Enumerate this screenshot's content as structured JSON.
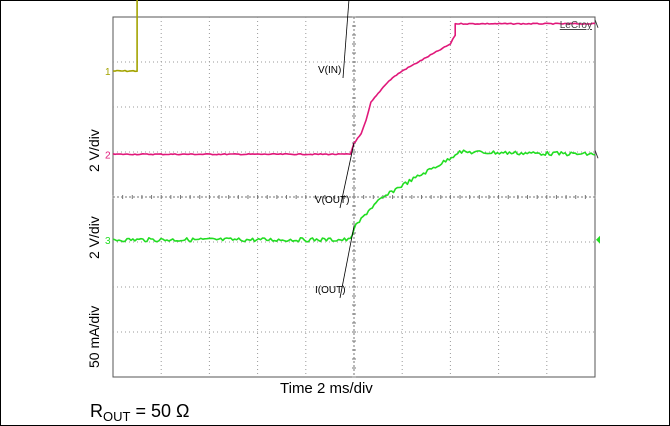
{
  "brand": "LeCroy",
  "labels": {
    "ylabel_top": "2 V/div",
    "ylabel_mid": "2 V/div",
    "ylabel_bot": "50 mA/div",
    "xlabel": "Time 2 ms/div",
    "rout_prefix": "R",
    "rout_sub": "OUT",
    "rout_suffix": " = 50 Ω"
  },
  "colors": {
    "vin": "#a3a300",
    "vout": "#e0187a",
    "iout": "#22dd22",
    "grid": "#9a9a9a",
    "border": "#555555"
  },
  "chart_data": {
    "type": "line",
    "x_unit": "ms",
    "x_range": [
      0,
      20
    ],
    "x_divisions": 10,
    "y_divisions": 8,
    "series": [
      {
        "name": "V(IN)",
        "marker": "1",
        "units": "div",
        "points": [
          [
            0,
            6.8
          ],
          [
            1.0,
            6.8
          ],
          [
            1.0,
            9.7
          ],
          [
            1.15,
            9.85
          ],
          [
            1.5,
            9.85
          ],
          [
            20,
            9.85
          ]
        ]
      },
      {
        "name": "V(OUT)",
        "marker": "2",
        "units": "div",
        "points": [
          [
            0,
            4.95
          ],
          [
            9.85,
            4.95
          ],
          [
            10.0,
            5.2
          ],
          [
            10.3,
            5.4
          ],
          [
            10.5,
            5.7
          ],
          [
            10.7,
            6.1
          ],
          [
            11.0,
            6.3
          ],
          [
            11.3,
            6.5
          ],
          [
            11.6,
            6.65
          ],
          [
            12.0,
            6.8
          ],
          [
            12.5,
            6.95
          ],
          [
            13.0,
            7.1
          ],
          [
            13.5,
            7.25
          ],
          [
            14.0,
            7.4
          ],
          [
            14.2,
            7.6
          ],
          [
            14.2,
            7.85
          ],
          [
            20,
            7.85
          ]
        ]
      },
      {
        "name": "I(OUT)",
        "marker": "3",
        "units": "div",
        "points": [
          [
            0,
            3.05
          ],
          [
            9.85,
            3.05
          ],
          [
            10.0,
            3.3
          ],
          [
            10.3,
            3.5
          ],
          [
            10.6,
            3.7
          ],
          [
            11.0,
            3.9
          ],
          [
            11.4,
            4.05
          ],
          [
            11.8,
            4.2
          ],
          [
            12.3,
            4.35
          ],
          [
            12.8,
            4.5
          ],
          [
            13.3,
            4.65
          ],
          [
            13.8,
            4.8
          ],
          [
            14.2,
            4.95
          ],
          [
            14.3,
            5.0
          ],
          [
            20,
            4.95
          ]
        ]
      }
    ],
    "annotations": [
      {
        "text": "V(IN)",
        "target": "V(IN)"
      },
      {
        "text": "V(OUT)",
        "target": "V(OUT)"
      },
      {
        "text": "I(OUT)",
        "target": "I(OUT)"
      }
    ],
    "grid": true,
    "xlabel": "Time 2 ms/div",
    "ylabels": [
      "2 V/div",
      "2 V/div",
      "50 mA/div"
    ]
  }
}
